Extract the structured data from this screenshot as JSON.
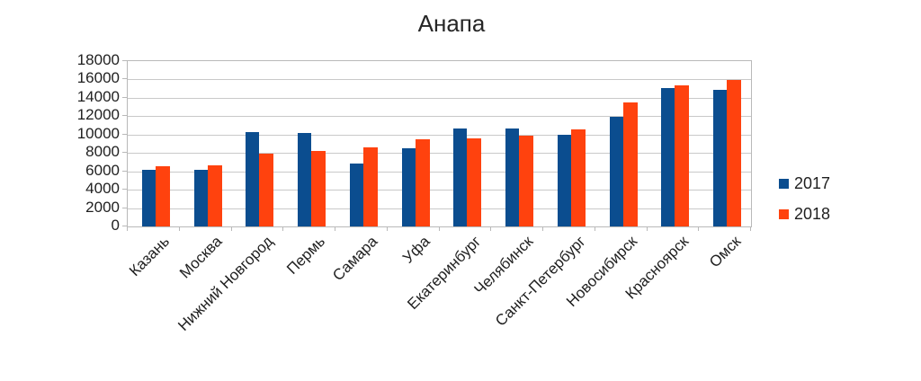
{
  "title": "Анапа",
  "chart_data": {
    "type": "bar",
    "title": "Анапа",
    "categories": [
      "Казань",
      "Москва",
      "Нижний Новгород",
      "Пермь",
      "Самара",
      "Уфа",
      "Екатеринбург",
      "Челябинск",
      "Санкт-Петербург",
      "Новосибирск",
      "Красноярск",
      "Омск"
    ],
    "series": [
      {
        "name": "2017",
        "color": "#0B4D8F",
        "values": [
          6200,
          6200,
          10300,
          10200,
          6800,
          8500,
          10700,
          10700,
          10000,
          11900,
          15100,
          14900
        ]
      },
      {
        "name": "2018",
        "color": "#FF420E",
        "values": [
          6600,
          6700,
          7900,
          8200,
          8600,
          9500,
          9600,
          9900,
          10600,
          13500,
          15400,
          15900
        ]
      }
    ],
    "xlabel": "",
    "ylabel": "",
    "ylim": [
      0,
      18000
    ],
    "ytick_step": 2000,
    "ytick_labels": [
      "18000",
      "16000",
      "14000",
      "12000",
      "10000",
      "8000",
      "6000",
      "4000",
      "2000",
      "0"
    ],
    "grid": true,
    "legend_position": "right",
    "grid_color": "#c9c9c9",
    "axis_color": "#b9b9b9",
    "text_color": "#1f1f1f"
  }
}
